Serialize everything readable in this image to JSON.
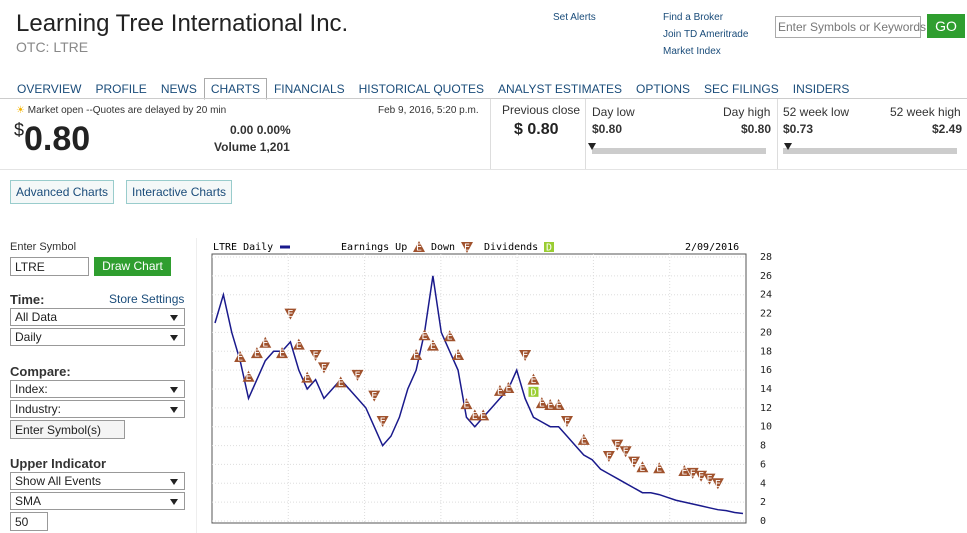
{
  "header": {
    "title": "Learning Tree International Inc.",
    "ticker": "OTC: LTRE"
  },
  "links": [
    "Set Alerts",
    "Find a Broker",
    "Join TD Ameritrade",
    "Market Index"
  ],
  "search": {
    "placeholder": "Enter Symbols or Keywords",
    "button": "GO"
  },
  "tabs": [
    "OVERVIEW",
    "PROFILE",
    "NEWS",
    "CHARTS",
    "FINANCIALS",
    "HISTORICAL QUOTES",
    "ANALYST ESTIMATES",
    "OPTIONS",
    "SEC FILINGS",
    "INSIDERS"
  ],
  "active_tab": 3,
  "quote": {
    "status": "Market open --Quotes are delayed by 20 min",
    "date": "Feb 9, 2016, 5:20 p.m.",
    "currency": "$",
    "price": "0.80",
    "change": "0.00 0.00%",
    "volume": "Volume 1,201",
    "prev_close_label": "Previous close",
    "prev_close": "$ 0.80",
    "day_low_label": "Day low",
    "day_low": "$0.80",
    "day_high_label": "Day high",
    "day_high": "$0.80",
    "week_low_label": "52 week low",
    "week_low": "$0.73",
    "week_high_label": "52 week high",
    "week_high": "$2.49"
  },
  "chart_buttons": [
    "Advanced Charts",
    "Interactive Charts"
  ],
  "controls": {
    "symbol_label": "Enter Symbol",
    "symbol": "LTRE",
    "draw_button": "Draw Chart",
    "time_label": "Time:",
    "store_settings": "Store Settings",
    "range": "All Data",
    "interval": "Daily",
    "compare_label": "Compare:",
    "index": "Index:",
    "industry": "Industry:",
    "compare_symbols": "Enter Symbol(s)",
    "upper_label": "Upper Indicator",
    "events": "Show All Events",
    "indicator": "SMA",
    "period": "50"
  },
  "chart": {
    "type": "line",
    "title": "LTRE Daily",
    "legend": {
      "up": "Earnings Up",
      "down": "Down",
      "dividends": "Dividends"
    },
    "date": "2/09/2016",
    "event_label": "E",
    "dividend_label": "D",
    "color": "#1a1a8c",
    "event_color": "#a0522d",
    "dividend_color": "#9acd32",
    "ylim": [
      0,
      28
    ],
    "yticks": [
      0,
      2,
      4,
      6,
      8,
      10,
      12,
      14,
      16,
      18,
      20,
      22,
      24,
      26,
      28
    ],
    "grid": true,
    "values": [
      21,
      24,
      20,
      17,
      13,
      15,
      17,
      18,
      18,
      19,
      16,
      14,
      15,
      13,
      14,
      15,
      14,
      13,
      12,
      10,
      8,
      9,
      11,
      14,
      16,
      20,
      26,
      20,
      18,
      16,
      11,
      10,
      11,
      12,
      13,
      14,
      16,
      13,
      11,
      10.5,
      10,
      10,
      9,
      8,
      7,
      6.5,
      5.5,
      5,
      4.5,
      4,
      3.5,
      3,
      3,
      2.8,
      2.5,
      2.2,
      2,
      1.8,
      1.6,
      1.4,
      1.2,
      1.1,
      0.9,
      0.8
    ],
    "events": [
      {
        "kind": "up",
        "index": 3,
        "value": 17.4
      },
      {
        "kind": "up",
        "index": 4,
        "value": 15.3
      },
      {
        "kind": "up",
        "index": 5,
        "value": 17.8
      },
      {
        "kind": "up",
        "index": 6,
        "value": 18.9
      },
      {
        "kind": "up",
        "index": 8,
        "value": 17.8
      },
      {
        "kind": "down",
        "index": 9,
        "value": 22
      },
      {
        "kind": "up",
        "index": 10,
        "value": 18.7
      },
      {
        "kind": "up",
        "index": 11,
        "value": 15.2
      },
      {
        "kind": "down",
        "index": 12,
        "value": 17.6
      },
      {
        "kind": "down",
        "index": 13,
        "value": 16.3
      },
      {
        "kind": "up",
        "index": 15,
        "value": 14.7
      },
      {
        "kind": "down",
        "index": 17,
        "value": 15.5
      },
      {
        "kind": "down",
        "index": 19,
        "value": 13.3
      },
      {
        "kind": "down",
        "index": 20,
        "value": 10.6
      },
      {
        "kind": "up",
        "index": 24,
        "value": 17.6
      },
      {
        "kind": "up",
        "index": 25,
        "value": 19.7
      },
      {
        "kind": "up",
        "index": 26,
        "value": 18.6
      },
      {
        "kind": "up",
        "index": 28,
        "value": 19.6
      },
      {
        "kind": "up",
        "index": 29,
        "value": 17.6
      },
      {
        "kind": "up",
        "index": 30,
        "value": 12.4
      },
      {
        "kind": "up",
        "index": 31,
        "value": 11.2
      },
      {
        "kind": "up",
        "index": 32,
        "value": 11.2
      },
      {
        "kind": "up",
        "index": 34,
        "value": 13.8
      },
      {
        "kind": "up",
        "index": 35,
        "value": 14.1
      },
      {
        "kind": "down",
        "index": 37,
        "value": 17.6
      },
      {
        "kind": "up",
        "index": 38,
        "value": 15
      },
      {
        "kind": "up",
        "index": 39,
        "value": 12.5
      },
      {
        "kind": "up",
        "index": 40,
        "value": 12.3
      },
      {
        "kind": "up",
        "index": 41,
        "value": 12.3
      },
      {
        "kind": "down",
        "index": 42,
        "value": 10.6
      },
      {
        "kind": "up",
        "index": 44,
        "value": 8.6
      },
      {
        "kind": "down",
        "index": 47,
        "value": 6.9
      },
      {
        "kind": "down",
        "index": 48,
        "value": 8.1
      },
      {
        "kind": "down",
        "index": 49,
        "value": 7.4
      },
      {
        "kind": "down",
        "index": 50,
        "value": 6.3
      },
      {
        "kind": "up",
        "index": 51,
        "value": 5.7
      },
      {
        "kind": "up",
        "index": 53,
        "value": 5.6
      },
      {
        "kind": "up",
        "index": 56,
        "value": 5.3
      },
      {
        "kind": "down",
        "index": 57,
        "value": 5.1
      },
      {
        "kind": "down",
        "index": 58,
        "value": 4.8
      },
      {
        "kind": "down",
        "index": 59,
        "value": 4.5
      },
      {
        "kind": "down",
        "index": 60,
        "value": 4
      }
    ],
    "dividends": [
      {
        "index": 38,
        "value": 13.7
      }
    ]
  }
}
